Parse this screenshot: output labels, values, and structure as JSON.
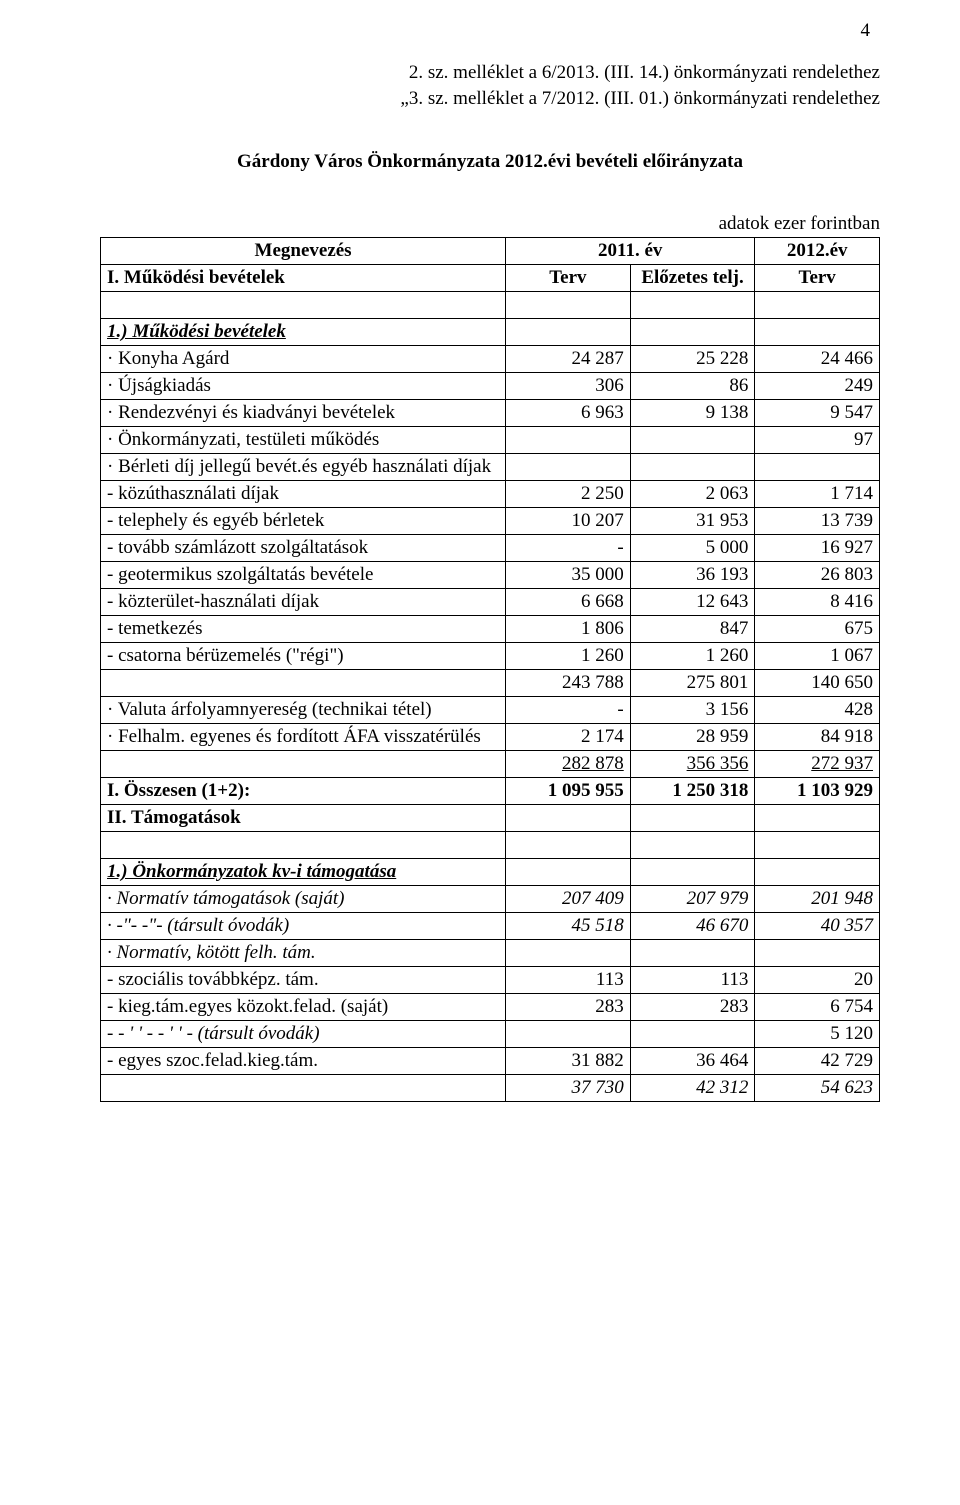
{
  "page_number": "4",
  "attachment_line_1": "2. sz. melléklet a 6/2013. (III. 14.) önkormányzati rendelethez",
  "attachment_line_2": "„3. sz. melléklet a 7/2012. (III. 01.) önkormányzati rendelethez",
  "doc_title": "Gárdony Város Önkormányzata 2012.évi bevételi előirányzata",
  "units_note": "adatok ezer forintban",
  "header": {
    "megnevezes": "Megnevezés",
    "year1": "2011. év",
    "year2": "2012.év",
    "terv1": "Terv",
    "elozetes": "Előzetes telj.",
    "terv2": "Terv"
  },
  "section_I_title": "I. Működési bevételek",
  "section_1_title": "1.) Működési bevételek",
  "rows_1": [
    {
      "label": "· Konyha Agárd",
      "v": [
        "24 287",
        "25 228",
        "24 466"
      ]
    },
    {
      "label": "· Újságkiadás",
      "v": [
        "306",
        "86",
        "249"
      ]
    },
    {
      "label": "· Rendezvényi és kiadványi bevételek",
      "v": [
        "6 963",
        "9 138",
        "9 547"
      ]
    },
    {
      "label": "· Önkormányzati, testületi működés",
      "v": [
        "",
        "",
        "97"
      ]
    }
  ],
  "row_berleti_label": "· Bérleti díj jellegű bevét.és egyéb használati díjak",
  "rows_berleti": [
    {
      "label": "- közúthasználati díjak",
      "v": [
        "2 250",
        "2 063",
        "1 714"
      ]
    },
    {
      "label": "- telephely és egyéb bérletek",
      "v": [
        "10 207",
        "31 953",
        "13 739"
      ]
    },
    {
      "label": "- tovább számlázott szolgáltatások",
      "v": [
        "-",
        "5 000",
        "16 927"
      ]
    },
    {
      "label": "- geotermikus szolgáltatás bevétele",
      "v": [
        "35 000",
        "36 193",
        "26 803"
      ]
    },
    {
      "label": "- közterület-használati díjak",
      "v": [
        "6 668",
        "12 643",
        "8 416"
      ]
    },
    {
      "label": "- temetkezés",
      "v": [
        "1 806",
        "847",
        "675"
      ]
    },
    {
      "label": "- csatorna bérüzemelés (\"régi\")",
      "v": [
        "1 260",
        "1 260",
        "1 067"
      ]
    }
  ],
  "subtotal_a": [
    "243 788",
    "275 801",
    "140 650"
  ],
  "row_valuta": {
    "label": "· Valuta árfolyamnyereség (technikai tétel)",
    "v": [
      "-",
      "3 156",
      "428"
    ]
  },
  "row_felhalm": {
    "label": "· Felhalm. egyenes és fordított ÁFA visszatérülés",
    "v": [
      "2 174",
      "28 959",
      "84 918"
    ]
  },
  "subtotal_b": [
    "282 878",
    "356 356",
    "272 937"
  ],
  "total_I": {
    "label": "I. Összesen (1+2):",
    "v": [
      "1 095 955",
      "1 250 318",
      "1 103 929"
    ]
  },
  "section_II_title": "II. Támogatások",
  "section_II_1_title": "1.) Önkormányzatok kv-i támogatása",
  "rows_II": [
    {
      "label": "· Normatív támogatások  (saját)",
      "italic": true,
      "v": [
        "207 409",
        "207 979",
        "201 948"
      ]
    },
    {
      "label": "·    -\"-           -\"-           (társult óvodák)",
      "italic": true,
      "v": [
        "45 518",
        "46 670",
        "40 357"
      ]
    },
    {
      "label": "· Normatív, kötött felh. tám.",
      "italic": true,
      "v": [
        "",
        "",
        ""
      ]
    },
    {
      "label": "- szociális továbbképz. tám.",
      "sp": true,
      "v": [
        "113",
        "113",
        "20"
      ]
    },
    {
      "label": "- kieg.tám.egyes közokt.felad. (saját)",
      "sp": true,
      "mixedItalic": true,
      "v": [
        "283",
        "283",
        "6 754"
      ]
    },
    {
      "label": "-   - ' ' -        - ' ' -       (társult óvodák)",
      "italic": true,
      "v": [
        "",
        "",
        "5 120"
      ]
    },
    {
      "label": "- egyes szoc.felad.kieg.tám.",
      "sp": true,
      "v": [
        "31 882",
        "36 464",
        "42 729"
      ]
    }
  ],
  "subtotal_II": [
    "37 730",
    "42 312",
    "54 623"
  ],
  "colors": {
    "text": "#000000",
    "background": "#ffffff",
    "border": "#000000"
  },
  "fonts": {
    "family": "Times New Roman",
    "body_size_pt": 14
  }
}
